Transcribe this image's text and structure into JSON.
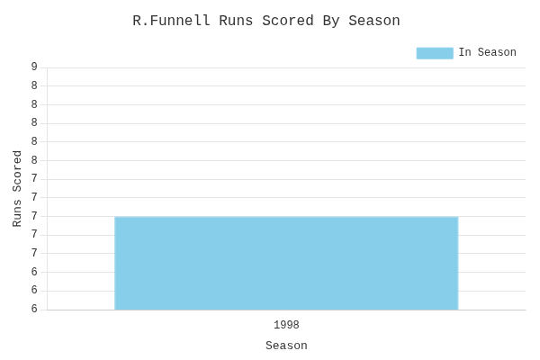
{
  "chart_data": {
    "type": "bar",
    "title": "R.Funnell Runs Scored By Season",
    "x_label": "Season",
    "y_label": "Runs Scored",
    "categories": [
      "1998"
    ],
    "series": [
      {
        "name": "In Season",
        "color": "#87CEEB",
        "values": [
          7
        ]
      }
    ],
    "ylim": [
      6.0,
      8.6
    ],
    "yticks": [
      6,
      {
        "value": 6.2,
        "label": "6"
      },
      {
        "value": 6.4,
        "label": "6"
      },
      {
        "value": 6.6,
        "label": "7"
      },
      {
        "value": 6.8,
        "label": "7"
      },
      7,
      {
        "value": 7.2,
        "label": "7"
      },
      {
        "value": 7.4,
        "label": "7"
      },
      {
        "value": 7.6,
        "label": "8"
      },
      {
        "value": 7.8,
        "label": "8"
      },
      8,
      {
        "value": 8.2,
        "label": "8"
      },
      {
        "value": 8.4,
        "label": "8"
      },
      {
        "value": 8.6,
        "label": "9"
      }
    ],
    "grid": "y",
    "legend": "upper right"
  }
}
